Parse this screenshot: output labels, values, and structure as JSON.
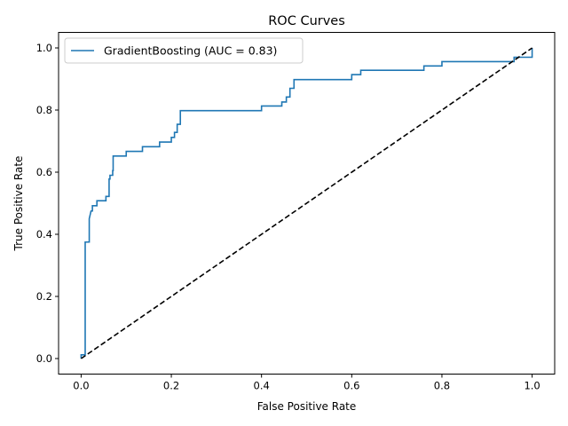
{
  "chart_data": {
    "type": "line",
    "title": "ROC Curves",
    "xlabel": "False Positive Rate",
    "ylabel": "True Positive Rate",
    "xlim": [
      -0.05,
      1.05
    ],
    "ylim": [
      -0.05,
      1.05
    ],
    "xticks": [
      "0.0",
      "0.2",
      "0.4",
      "0.6",
      "0.8",
      "1.0"
    ],
    "yticks": [
      "0.0",
      "0.2",
      "0.4",
      "0.6",
      "0.8",
      "1.0"
    ],
    "grid": false,
    "legend_position": "top-left",
    "series": [
      {
        "name": "GradientBoosting (AUC = 0.83)",
        "color": "#1f77b4",
        "style": "solid",
        "x": [
          0.0,
          0.0,
          0.009,
          0.009,
          0.009,
          0.018,
          0.018,
          0.018,
          0.022,
          0.025,
          0.025,
          0.035,
          0.035,
          0.055,
          0.055,
          0.062,
          0.062,
          0.064,
          0.064,
          0.07,
          0.07,
          0.071,
          0.071,
          0.1,
          0.1,
          0.136,
          0.136,
          0.174,
          0.174,
          0.2,
          0.2,
          0.207,
          0.207,
          0.213,
          0.213,
          0.22,
          0.22,
          0.4,
          0.4,
          0.445,
          0.445,
          0.455,
          0.455,
          0.463,
          0.463,
          0.472,
          0.472,
          0.6,
          0.6,
          0.62,
          0.62,
          0.76,
          0.76,
          0.8,
          0.8,
          0.96,
          0.96,
          0.98,
          0.98,
          1.0,
          1.0
        ],
        "y": [
          0.0,
          0.012,
          0.012,
          0.25,
          0.375,
          0.375,
          0.44,
          0.45,
          0.475,
          0.475,
          0.492,
          0.492,
          0.508,
          0.508,
          0.522,
          0.522,
          0.578,
          0.578,
          0.59,
          0.59,
          0.605,
          0.605,
          0.652,
          0.652,
          0.667,
          0.667,
          0.682,
          0.682,
          0.697,
          0.697,
          0.712,
          0.712,
          0.728,
          0.728,
          0.754,
          0.754,
          0.798,
          0.798,
          0.813,
          0.813,
          0.826,
          0.826,
          0.842,
          0.842,
          0.87,
          0.87,
          0.898,
          0.898,
          0.914,
          0.914,
          0.928,
          0.928,
          0.942,
          0.942,
          0.956,
          0.956,
          0.97,
          0.97,
          0.97,
          0.97,
          1.0
        ]
      },
      {
        "name": "",
        "color": "#000000",
        "style": "dashed",
        "x": [
          0.0,
          1.0
        ],
        "y": [
          0.0,
          1.0
        ]
      }
    ]
  }
}
